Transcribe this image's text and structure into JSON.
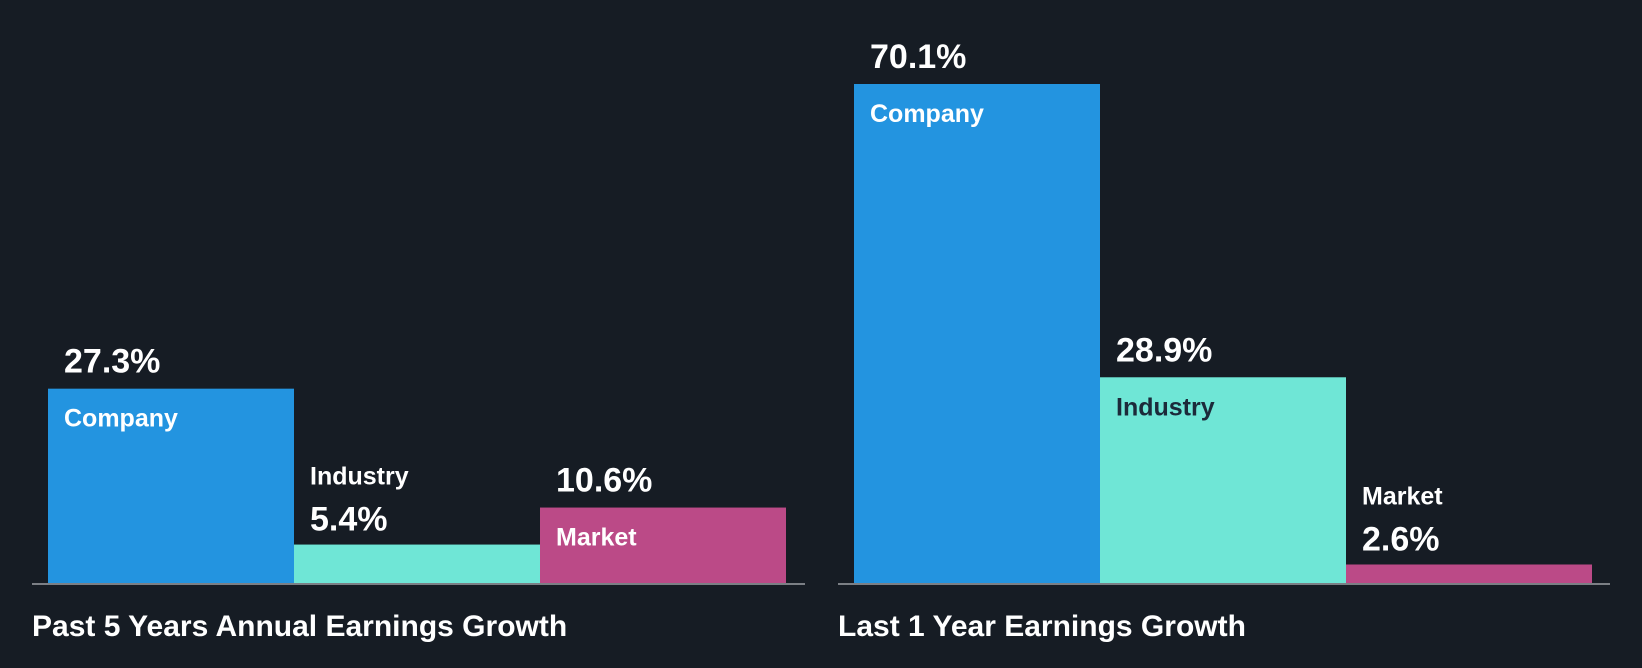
{
  "colors": {
    "background": "#161c24",
    "company": "#2394e0",
    "industry": "#6fe6d6",
    "market": "#bb4a87",
    "axis": "#7b7f85",
    "text_light": "#ffffff",
    "text_dark": "#1c2a3a"
  },
  "chart_data": [
    {
      "type": "bar",
      "title": "Past 5 Years Annual Earnings Growth",
      "categories": [
        "Company",
        "Industry",
        "Market"
      ],
      "values": [
        27.3,
        5.4,
        10.6
      ],
      "value_labels": [
        "27.3%",
        "5.4%",
        "10.6%"
      ],
      "ylim": [
        0,
        70.1
      ],
      "xlabel": "",
      "ylabel": ""
    },
    {
      "type": "bar",
      "title": "Last 1 Year Earnings Growth",
      "categories": [
        "Company",
        "Industry",
        "Market"
      ],
      "values": [
        70.1,
        28.9,
        2.6
      ],
      "value_labels": [
        "70.1%",
        "28.9%",
        "2.6%"
      ],
      "ylim": [
        0,
        70.1
      ],
      "xlabel": "",
      "ylabel": ""
    }
  ]
}
